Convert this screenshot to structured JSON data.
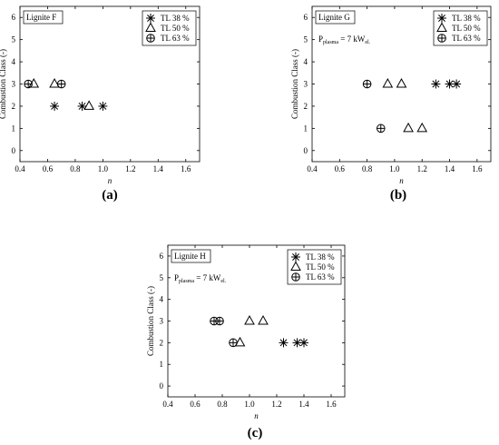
{
  "chart_data": [
    {
      "type": "scatter",
      "caption": "(a)",
      "panel_label": "Lignite F",
      "annotation": "",
      "xlabel": "n",
      "ylabel": "Combustion Class (-)",
      "xlim": [
        0.4,
        1.7
      ],
      "ylim": [
        -0.5,
        6.5
      ],
      "xticks": [
        "0.4",
        "0.6",
        "0.8",
        "1.0",
        "1.2",
        "1.4",
        "1.6"
      ],
      "yticks": [
        "0",
        "1",
        "2",
        "3",
        "4",
        "5",
        "6"
      ],
      "legend_position": "top-right",
      "series": [
        {
          "name": "TL 38 %",
          "marker": "asterisk",
          "x": [
            0.65,
            0.85,
            1.0
          ],
          "y": [
            2,
            2,
            2
          ]
        },
        {
          "name": "TL 50 %",
          "marker": "triangle",
          "x": [
            0.5,
            0.65,
            0.9
          ],
          "y": [
            3,
            3,
            2
          ]
        },
        {
          "name": "TL 63 %",
          "marker": "circle-plus",
          "x": [
            0.46,
            0.7
          ],
          "y": [
            3,
            3
          ]
        }
      ]
    },
    {
      "type": "scatter",
      "caption": "(b)",
      "panel_label": "Lignite G",
      "annotation": "P_plasma = 7 kW_el.",
      "xlabel": "n",
      "ylabel": "Combustion Class (-)",
      "xlim": [
        0.4,
        1.7
      ],
      "ylim": [
        -0.5,
        6.5
      ],
      "xticks": [
        "0.4",
        "0.6",
        "0.8",
        "1.0",
        "1.2",
        "1.4",
        "1.6"
      ],
      "yticks": [
        "0",
        "1",
        "2",
        "3",
        "4",
        "5",
        "6"
      ],
      "legend_position": "top-right",
      "series": [
        {
          "name": "TL 38 %",
          "marker": "asterisk",
          "x": [
            1.3,
            1.4,
            1.45
          ],
          "y": [
            3,
            3,
            3
          ]
        },
        {
          "name": "TL 50 %",
          "marker": "triangle",
          "x": [
            0.95,
            1.05,
            1.1,
            1.2
          ],
          "y": [
            3,
            3,
            1,
            1
          ]
        },
        {
          "name": "TL 63 %",
          "marker": "circle-plus",
          "x": [
            0.8,
            0.9
          ],
          "y": [
            3,
            1
          ]
        }
      ]
    },
    {
      "type": "scatter",
      "caption": "(c)",
      "panel_label": "Lignite H",
      "annotation": "P_plasma = 7 kW_el.",
      "xlabel": "n",
      "ylabel": "Combustion Class (-)",
      "xlim": [
        0.4,
        1.7
      ],
      "ylim": [
        -0.5,
        6.5
      ],
      "xticks": [
        "0.4",
        "0.6",
        "0.8",
        "1.0",
        "1.2",
        "1.4",
        "1.6"
      ],
      "yticks": [
        "0",
        "1",
        "2",
        "3",
        "4",
        "5",
        "6"
      ],
      "legend_position": "top-right",
      "series": [
        {
          "name": "TL 38 %",
          "marker": "asterisk",
          "x": [
            1.25,
            1.35,
            1.4
          ],
          "y": [
            2,
            2,
            2
          ]
        },
        {
          "name": "TL 50 %",
          "marker": "triangle",
          "x": [
            0.93,
            1.0,
            1.1
          ],
          "y": [
            2,
            3,
            3
          ]
        },
        {
          "name": "TL 63 %",
          "marker": "circle-plus",
          "x": [
            0.74,
            0.78,
            0.88
          ],
          "y": [
            3,
            3,
            2
          ]
        }
      ]
    }
  ]
}
